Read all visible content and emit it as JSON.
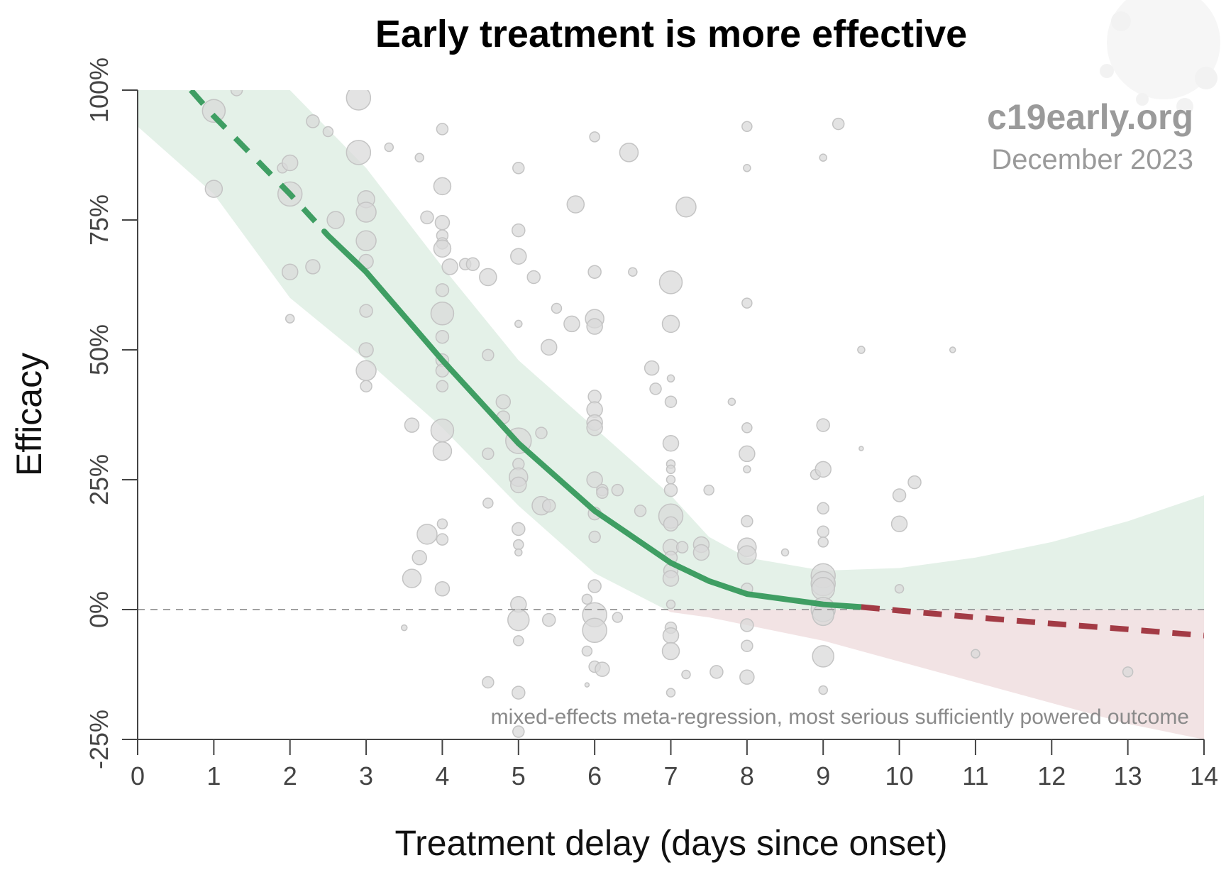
{
  "chart_data": {
    "type": "scatter",
    "title": "Early treatment is more effective",
    "xlabel": "Treatment delay (days since onset)",
    "ylabel": "Efficacy",
    "xlim": [
      0,
      14
    ],
    "ylim": [
      -25,
      100
    ],
    "x_ticks": [
      "0",
      "1",
      "2",
      "3",
      "4",
      "5",
      "6",
      "7",
      "8",
      "9",
      "10",
      "11",
      "12",
      "13",
      "14"
    ],
    "y_ticks": [
      "-25%",
      "0%",
      "25%",
      "50%",
      "75%",
      "100%"
    ],
    "y_tick_values": [
      -25,
      0,
      25,
      50,
      75,
      100
    ],
    "annotation": "mixed-effects meta-regression, most serious sufficiently powered outcome",
    "watermark": {
      "site": "c19early.org",
      "date": "December 2023"
    },
    "colors": {
      "fit": "#3f9e63",
      "band_pos": "#e4f1e8",
      "band_neg": "#f2e3e4",
      "fit_neg": "#a33b45",
      "points": "#d9d9d9"
    },
    "fit_curve": {
      "x": [
        0.7,
        1,
        2,
        2.5,
        3,
        4,
        5,
        6,
        7,
        7.5,
        8,
        9,
        9.5,
        10,
        11,
        12,
        13,
        14
      ],
      "y": [
        100,
        95,
        80,
        72,
        65,
        48,
        32,
        19,
        9,
        5.5,
        3,
        1,
        0.5,
        -0.2,
        -1.5,
        -2.7,
        -3.8,
        -5
      ],
      "dashed_before": 2.45,
      "negative_after": 9.5
    },
    "confidence_band": {
      "x": [
        0,
        1,
        2,
        3,
        4,
        5,
        6,
        7,
        7.5,
        8,
        9,
        10,
        11,
        12,
        13,
        14
      ],
      "upper": [
        100,
        100,
        100,
        85,
        66,
        48,
        35,
        22,
        14,
        10,
        7.5,
        8,
        10,
        13,
        17,
        22
      ],
      "lower": [
        93,
        80,
        60,
        48,
        35,
        20,
        7,
        -0.5,
        -1.5,
        -3,
        -6,
        -10,
        -14,
        -18,
        -22,
        -25
      ]
    },
    "points": [
      {
        "x": 1,
        "y": 96,
        "r": 16
      },
      {
        "x": 1,
        "y": 81,
        "r": 12
      },
      {
        "x": 1.3,
        "y": 100,
        "r": 8
      },
      {
        "x": 1.9,
        "y": 85,
        "r": 7
      },
      {
        "x": 2,
        "y": 86,
        "r": 11
      },
      {
        "x": 2,
        "y": 80,
        "r": 17
      },
      {
        "x": 2,
        "y": 65,
        "r": 11
      },
      {
        "x": 2,
        "y": 56,
        "r": 6
      },
      {
        "x": 2.3,
        "y": 94,
        "r": 9
      },
      {
        "x": 2.3,
        "y": 66,
        "r": 10
      },
      {
        "x": 2.5,
        "y": 92,
        "r": 7
      },
      {
        "x": 2.6,
        "y": 75,
        "r": 12
      },
      {
        "x": 2.9,
        "y": 98.5,
        "r": 17
      },
      {
        "x": 2.9,
        "y": 88,
        "r": 17
      },
      {
        "x": 3,
        "y": 79,
        "r": 12
      },
      {
        "x": 3,
        "y": 76.5,
        "r": 14
      },
      {
        "x": 3,
        "y": 71,
        "r": 14
      },
      {
        "x": 3,
        "y": 67,
        "r": 10
      },
      {
        "x": 3,
        "y": 57.5,
        "r": 9
      },
      {
        "x": 3,
        "y": 50,
        "r": 10
      },
      {
        "x": 3,
        "y": 46,
        "r": 14
      },
      {
        "x": 3,
        "y": 43,
        "r": 8
      },
      {
        "x": 3.3,
        "y": 89,
        "r": 6
      },
      {
        "x": 3.7,
        "y": 87,
        "r": 6
      },
      {
        "x": 3.6,
        "y": 35.5,
        "r": 10
      },
      {
        "x": 3.8,
        "y": 75.5,
        "r": 9
      },
      {
        "x": 4,
        "y": 92.5,
        "r": 8
      },
      {
        "x": 4,
        "y": 81.5,
        "r": 12
      },
      {
        "x": 4,
        "y": 74.5,
        "r": 10
      },
      {
        "x": 4,
        "y": 72,
        "r": 8
      },
      {
        "x": 4,
        "y": 70.5,
        "r": 8
      },
      {
        "x": 4,
        "y": 69.5,
        "r": 12
      },
      {
        "x": 4.1,
        "y": 66,
        "r": 11
      },
      {
        "x": 4,
        "y": 61.5,
        "r": 9
      },
      {
        "x": 4,
        "y": 57,
        "r": 16
      },
      {
        "x": 4,
        "y": 52.5,
        "r": 9
      },
      {
        "x": 4,
        "y": 48,
        "r": 9
      },
      {
        "x": 4,
        "y": 46,
        "r": 9
      },
      {
        "x": 4,
        "y": 43,
        "r": 8
      },
      {
        "x": 4,
        "y": 34.5,
        "r": 16
      },
      {
        "x": 4,
        "y": 30.5,
        "r": 13
      },
      {
        "x": 4,
        "y": 16.5,
        "r": 7
      },
      {
        "x": 4,
        "y": 13.5,
        "r": 8
      },
      {
        "x": 3.8,
        "y": 14.5,
        "r": 14
      },
      {
        "x": 3.7,
        "y": 10,
        "r": 10
      },
      {
        "x": 3.6,
        "y": 6,
        "r": 13
      },
      {
        "x": 4,
        "y": 4,
        "r": 10
      },
      {
        "x": 3.5,
        "y": -3.5,
        "r": 4
      },
      {
        "x": 4.3,
        "y": 66.5,
        "r": 8
      },
      {
        "x": 4.4,
        "y": 66.5,
        "r": 9
      },
      {
        "x": 4.6,
        "y": 64,
        "r": 12
      },
      {
        "x": 4.6,
        "y": 49,
        "r": 8
      },
      {
        "x": 4.6,
        "y": 30,
        "r": 8
      },
      {
        "x": 4.6,
        "y": 20.5,
        "r": 7
      },
      {
        "x": 4.6,
        "y": -14,
        "r": 8
      },
      {
        "x": 5,
        "y": 85,
        "r": 8
      },
      {
        "x": 5,
        "y": 73,
        "r": 9
      },
      {
        "x": 5,
        "y": 68,
        "r": 11
      },
      {
        "x": 5,
        "y": 55,
        "r": 5
      },
      {
        "x": 4.8,
        "y": 40,
        "r": 10
      },
      {
        "x": 4.8,
        "y": 37,
        "r": 9
      },
      {
        "x": 5,
        "y": 32.5,
        "r": 18
      },
      {
        "x": 5,
        "y": 28,
        "r": 8
      },
      {
        "x": 5,
        "y": 25.5,
        "r": 13
      },
      {
        "x": 5,
        "y": 24,
        "r": 11
      },
      {
        "x": 5,
        "y": 15.5,
        "r": 9
      },
      {
        "x": 5,
        "y": 12.5,
        "r": 7
      },
      {
        "x": 5,
        "y": 11,
        "r": 5
      },
      {
        "x": 5,
        "y": 1,
        "r": 11
      },
      {
        "x": 5,
        "y": -2,
        "r": 15
      },
      {
        "x": 5,
        "y": -6,
        "r": 7
      },
      {
        "x": 5,
        "y": -16,
        "r": 9
      },
      {
        "x": 5,
        "y": -23.5,
        "r": 8
      },
      {
        "x": 5.2,
        "y": 64,
        "r": 9
      },
      {
        "x": 5.3,
        "y": 34,
        "r": 8
      },
      {
        "x": 5.3,
        "y": 20,
        "r": 13
      },
      {
        "x": 5.4,
        "y": 20,
        "r": 9
      },
      {
        "x": 5.4,
        "y": 50.5,
        "r": 11
      },
      {
        "x": 5.4,
        "y": -2,
        "r": 9
      },
      {
        "x": 5.5,
        "y": 58,
        "r": 7
      },
      {
        "x": 5.7,
        "y": 55,
        "r": 11
      },
      {
        "x": 5.75,
        "y": 78,
        "r": 12
      },
      {
        "x": 5.9,
        "y": -8,
        "r": 7
      },
      {
        "x": 5.9,
        "y": 2,
        "r": 7
      },
      {
        "x": 5.9,
        "y": -14.5,
        "r": 3
      },
      {
        "x": 6,
        "y": 91,
        "r": 7
      },
      {
        "x": 6,
        "y": 65,
        "r": 9
      },
      {
        "x": 6,
        "y": 56,
        "r": 13
      },
      {
        "x": 6,
        "y": 54.5,
        "r": 11
      },
      {
        "x": 6,
        "y": 41,
        "r": 9
      },
      {
        "x": 6,
        "y": 38.5,
        "r": 11
      },
      {
        "x": 6,
        "y": 36,
        "r": 11
      },
      {
        "x": 6,
        "y": 35,
        "r": 11
      },
      {
        "x": 6,
        "y": 25,
        "r": 11
      },
      {
        "x": 6.1,
        "y": 23,
        "r": 8
      },
      {
        "x": 6.1,
        "y": 22.5,
        "r": 8
      },
      {
        "x": 6,
        "y": 18.5,
        "r": 9
      },
      {
        "x": 6,
        "y": 14,
        "r": 8
      },
      {
        "x": 6,
        "y": 4.5,
        "r": 9
      },
      {
        "x": 6,
        "y": -1,
        "r": 17
      },
      {
        "x": 6,
        "y": -4,
        "r": 17
      },
      {
        "x": 6,
        "y": -11,
        "r": 8
      },
      {
        "x": 6.1,
        "y": -11.5,
        "r": 10
      },
      {
        "x": 6.3,
        "y": -1.5,
        "r": 7
      },
      {
        "x": 6.3,
        "y": 23,
        "r": 8
      },
      {
        "x": 6.45,
        "y": 88,
        "r": 13
      },
      {
        "x": 6.5,
        "y": 65,
        "r": 6
      },
      {
        "x": 6.6,
        "y": 19,
        "r": 8
      },
      {
        "x": 6.75,
        "y": 46.5,
        "r": 10
      },
      {
        "x": 6.8,
        "y": 42.5,
        "r": 8
      },
      {
        "x": 7,
        "y": 63,
        "r": 16
      },
      {
        "x": 7,
        "y": 55,
        "r": 12
      },
      {
        "x": 7,
        "y": 44.5,
        "r": 5
      },
      {
        "x": 7,
        "y": 40,
        "r": 8
      },
      {
        "x": 7,
        "y": 32,
        "r": 11
      },
      {
        "x": 7,
        "y": 28,
        "r": 6
      },
      {
        "x": 7,
        "y": 27,
        "r": 6
      },
      {
        "x": 7,
        "y": 25,
        "r": 6
      },
      {
        "x": 7,
        "y": 23,
        "r": 9
      },
      {
        "x": 7,
        "y": 18,
        "r": 17
      },
      {
        "x": 7,
        "y": 16.5,
        "r": 10
      },
      {
        "x": 7,
        "y": 12,
        "r": 11
      },
      {
        "x": 7,
        "y": 10,
        "r": 9
      },
      {
        "x": 7,
        "y": 7.5,
        "r": 10
      },
      {
        "x": 7,
        "y": 6,
        "r": 11
      },
      {
        "x": 7,
        "y": 1,
        "r": 6
      },
      {
        "x": 7,
        "y": -3.5,
        "r": 8
      },
      {
        "x": 7,
        "y": -5,
        "r": 11
      },
      {
        "x": 7,
        "y": -8,
        "r": 12
      },
      {
        "x": 7,
        "y": -16,
        "r": 6
      },
      {
        "x": 7.2,
        "y": -12.5,
        "r": 6
      },
      {
        "x": 7.15,
        "y": 12,
        "r": 8
      },
      {
        "x": 7.2,
        "y": 77.5,
        "r": 14
      },
      {
        "x": 7.4,
        "y": 12.5,
        "r": 11
      },
      {
        "x": 7.4,
        "y": 11,
        "r": 11
      },
      {
        "x": 7.5,
        "y": 23,
        "r": 7
      },
      {
        "x": 7.6,
        "y": -12,
        "r": 9
      },
      {
        "x": 7.8,
        "y": 40,
        "r": 5
      },
      {
        "x": 8,
        "y": 93,
        "r": 7
      },
      {
        "x": 8,
        "y": 85,
        "r": 5
      },
      {
        "x": 8,
        "y": 59,
        "r": 7
      },
      {
        "x": 8,
        "y": 35,
        "r": 7
      },
      {
        "x": 8,
        "y": 30,
        "r": 11
      },
      {
        "x": 8,
        "y": 27,
        "r": 5
      },
      {
        "x": 8,
        "y": 17,
        "r": 8
      },
      {
        "x": 8,
        "y": 12,
        "r": 13
      },
      {
        "x": 8,
        "y": 10.5,
        "r": 13
      },
      {
        "x": 8,
        "y": 4,
        "r": 8
      },
      {
        "x": 8,
        "y": -3,
        "r": 9
      },
      {
        "x": 8,
        "y": -7,
        "r": 8
      },
      {
        "x": 8,
        "y": -13,
        "r": 10
      },
      {
        "x": 8.5,
        "y": 11,
        "r": 5
      },
      {
        "x": 8.9,
        "y": 26,
        "r": 7
      },
      {
        "x": 9,
        "y": 87,
        "r": 5
      },
      {
        "x": 9,
        "y": 35.5,
        "r": 9
      },
      {
        "x": 9,
        "y": 27,
        "r": 11
      },
      {
        "x": 9,
        "y": 19.5,
        "r": 8
      },
      {
        "x": 9,
        "y": 15,
        "r": 8
      },
      {
        "x": 9,
        "y": 13,
        "r": 7
      },
      {
        "x": 9,
        "y": 6.5,
        "r": 17
      },
      {
        "x": 9,
        "y": 5,
        "r": 17
      },
      {
        "x": 9,
        "y": 4,
        "r": 16
      },
      {
        "x": 9,
        "y": 0,
        "r": 17
      },
      {
        "x": 9,
        "y": -1,
        "r": 15
      },
      {
        "x": 9,
        "y": -9,
        "r": 15
      },
      {
        "x": 9,
        "y": -15.5,
        "r": 6
      },
      {
        "x": 9.2,
        "y": 93.5,
        "r": 8
      },
      {
        "x": 9.5,
        "y": 50,
        "r": 5
      },
      {
        "x": 9.5,
        "y": 31,
        "r": 3
      },
      {
        "x": 10,
        "y": 22,
        "r": 9
      },
      {
        "x": 10,
        "y": 16.5,
        "r": 11
      },
      {
        "x": 10,
        "y": 4,
        "r": 6
      },
      {
        "x": 10.2,
        "y": 24.5,
        "r": 9
      },
      {
        "x": 10.7,
        "y": 50,
        "r": 4
      },
      {
        "x": 11,
        "y": -8.5,
        "r": 6
      },
      {
        "x": 13,
        "y": -12,
        "r": 7
      }
    ]
  }
}
